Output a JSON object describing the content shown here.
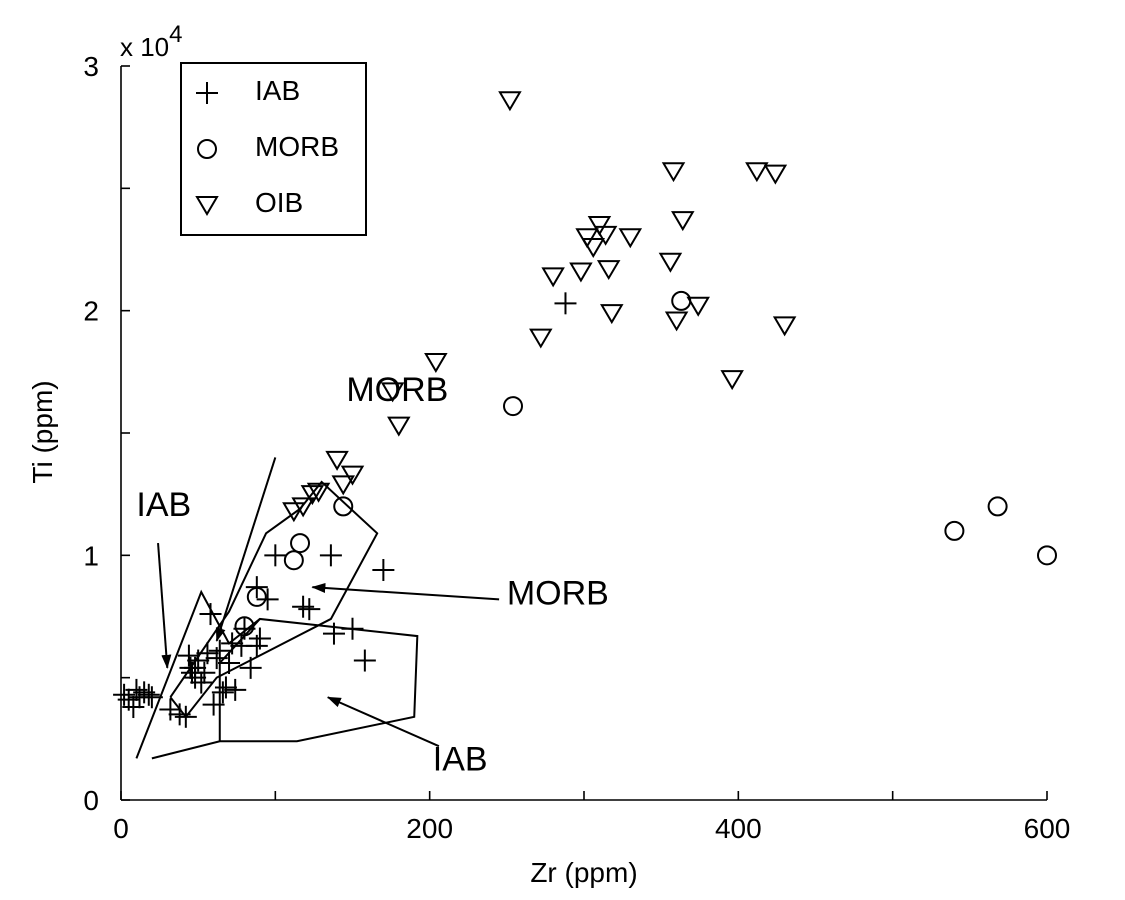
{
  "chart_data": {
    "type": "scatter",
    "xlabel": "Zr (ppm)",
    "ylabel": "Ti (ppm)",
    "y_multiplier_label": "x 10",
    "y_multiplier_exponent": "4",
    "xlim": [
      0,
      600
    ],
    "ylim": [
      0,
      30000
    ],
    "x_ticks": [
      0,
      100,
      200,
      300,
      400,
      500,
      600
    ],
    "x_tick_labels": [
      "0",
      "",
      "200",
      "",
      "400",
      "",
      "600"
    ],
    "y_ticks": [
      0,
      5000,
      10000,
      15000,
      20000,
      25000,
      30000
    ],
    "y_tick_labels": [
      "0",
      "",
      "1",
      "",
      "2",
      "",
      "3"
    ],
    "grid": false,
    "legend_position": "top-left",
    "series": [
      {
        "name": "IAB",
        "marker": "plus",
        "points": [
          [
            2,
            4300
          ],
          [
            5,
            4100
          ],
          [
            8,
            3800
          ],
          [
            10,
            4500
          ],
          [
            12,
            4200
          ],
          [
            15,
            4400
          ],
          [
            18,
            4300
          ],
          [
            20,
            4200
          ],
          [
            32,
            3700
          ],
          [
            38,
            3500
          ],
          [
            42,
            3400
          ],
          [
            44,
            5900
          ],
          [
            45,
            5400
          ],
          [
            46,
            5200
          ],
          [
            48,
            5000
          ],
          [
            48,
            5400
          ],
          [
            50,
            5700
          ],
          [
            52,
            4800
          ],
          [
            54,
            5200
          ],
          [
            56,
            6000
          ],
          [
            58,
            7600
          ],
          [
            60,
            3900
          ],
          [
            62,
            5800
          ],
          [
            64,
            6100
          ],
          [
            66,
            4400
          ],
          [
            68,
            4600
          ],
          [
            70,
            5600
          ],
          [
            72,
            6400
          ],
          [
            74,
            4500
          ],
          [
            78,
            6300
          ],
          [
            80,
            7000
          ],
          [
            84,
            5400
          ],
          [
            88,
            8700
          ],
          [
            88,
            6300
          ],
          [
            90,
            6600
          ],
          [
            95,
            8200
          ],
          [
            100,
            10000
          ],
          [
            118,
            7900
          ],
          [
            122,
            7800
          ],
          [
            136,
            10000
          ],
          [
            138,
            6800
          ],
          [
            150,
            7000
          ],
          [
            158,
            5700
          ],
          [
            170,
            9400
          ],
          [
            288,
            20300
          ]
        ]
      },
      {
        "name": "MORB",
        "marker": "circle",
        "points": [
          [
            80,
            7100
          ],
          [
            88,
            8300
          ],
          [
            112,
            9800
          ],
          [
            116,
            10500
          ],
          [
            144,
            12000
          ],
          [
            254,
            16100
          ],
          [
            363,
            20400
          ],
          [
            540,
            11000
          ],
          [
            568,
            12000
          ],
          [
            600,
            10000
          ]
        ]
      },
      {
        "name": "OIB",
        "marker": "triangle-down",
        "points": [
          [
            112,
            11800
          ],
          [
            118,
            12000
          ],
          [
            124,
            12500
          ],
          [
            128,
            12600
          ],
          [
            140,
            13900
          ],
          [
            144,
            12900
          ],
          [
            150,
            13300
          ],
          [
            176,
            16700
          ],
          [
            180,
            15300
          ],
          [
            204,
            17900
          ],
          [
            252,
            28600
          ],
          [
            272,
            18900
          ],
          [
            280,
            21400
          ],
          [
            298,
            21600
          ],
          [
            302,
            23000
          ],
          [
            306,
            22600
          ],
          [
            310,
            23500
          ],
          [
            314,
            23100
          ],
          [
            316,
            21700
          ],
          [
            318,
            19900
          ],
          [
            330,
            23000
          ],
          [
            356,
            22000
          ],
          [
            358,
            25700
          ],
          [
            360,
            19600
          ],
          [
            364,
            23700
          ],
          [
            374,
            20200
          ],
          [
            396,
            17200
          ],
          [
            412,
            25700
          ],
          [
            424,
            25600
          ],
          [
            430,
            19400
          ]
        ]
      }
    ],
    "fields": [
      {
        "name": "IAB",
        "polygon": [
          [
            10,
            1700
          ],
          [
            52,
            8500
          ],
          [
            70,
            6400
          ],
          [
            90,
            7400
          ],
          [
            192,
            6700
          ],
          [
            190,
            3400
          ],
          [
            114,
            2400
          ],
          [
            64,
            2400
          ],
          [
            20,
            1700
          ]
        ]
      },
      {
        "name": "MORB",
        "polygon": [
          [
            32,
            4200
          ],
          [
            70,
            7700
          ],
          [
            94,
            10900
          ],
          [
            116,
            11900
          ],
          [
            130,
            13000
          ],
          [
            166,
            10900
          ],
          [
            136,
            7400
          ],
          [
            62,
            5000
          ],
          [
            42,
            3400
          ],
          [
            32,
            4200
          ]
        ]
      },
      {
        "name": "IAB-inner",
        "polygon": [
          [
            64,
            2400
          ],
          [
            64,
            5600
          ],
          [
            90,
            7400
          ]
        ]
      }
    ],
    "annotations": [
      {
        "text": "MORB",
        "anchor": [
          146,
          16300
        ],
        "arrow_from": [
          100,
          14000
        ],
        "arrow_to": [
          62,
          6500
        ]
      },
      {
        "text": "IAB",
        "anchor": [
          10,
          11600
        ],
        "arrow_from": [
          24,
          10500
        ],
        "arrow_to": [
          30,
          5400
        ]
      },
      {
        "text": "MORB",
        "anchor": [
          250,
          8000
        ],
        "arrow_from": [
          245,
          8200
        ],
        "arrow_to": [
          124,
          8700
        ]
      },
      {
        "text": "IAB",
        "anchor": [
          202,
          1200
        ],
        "arrow_from": [
          206,
          2200
        ],
        "arrow_to": [
          134,
          4200
        ]
      }
    ]
  }
}
